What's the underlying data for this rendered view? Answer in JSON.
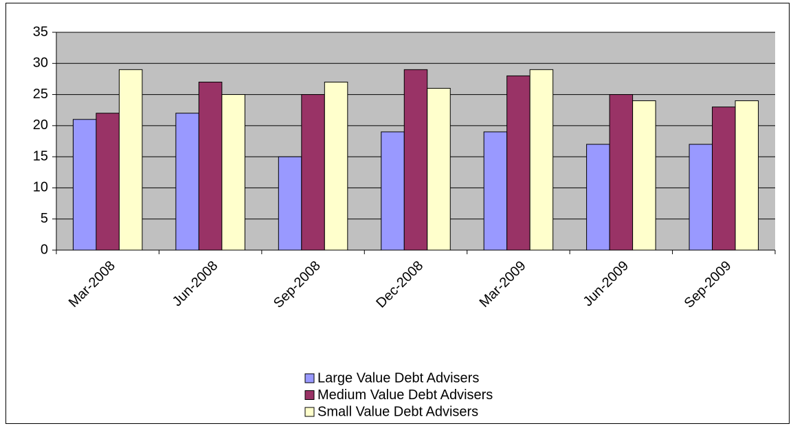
{
  "chart_data": {
    "type": "bar",
    "categories": [
      "Mar-2008",
      "Jun-2008",
      "Sep-2008",
      "Dec-2008",
      "Mar-2009",
      "Jun-2009",
      "Sep-2009"
    ],
    "series": [
      {
        "name": "Large Value Debt Advisers",
        "color": "#9999ff",
        "values": [
          21,
          22,
          15,
          19,
          19,
          17,
          17
        ]
      },
      {
        "name": "Medium Value Debt Advisers",
        "color": "#993366",
        "values": [
          22,
          27,
          25,
          29,
          28,
          25,
          23
        ]
      },
      {
        "name": "Small Value Debt Advisers",
        "color": "#ffffcc",
        "values": [
          29,
          25,
          27,
          26,
          29,
          24,
          24
        ]
      }
    ],
    "ylim": [
      0,
      35
    ],
    "yticks": [
      0,
      5,
      10,
      15,
      20,
      25,
      30,
      35
    ],
    "grid": true,
    "legend": "bottom"
  }
}
